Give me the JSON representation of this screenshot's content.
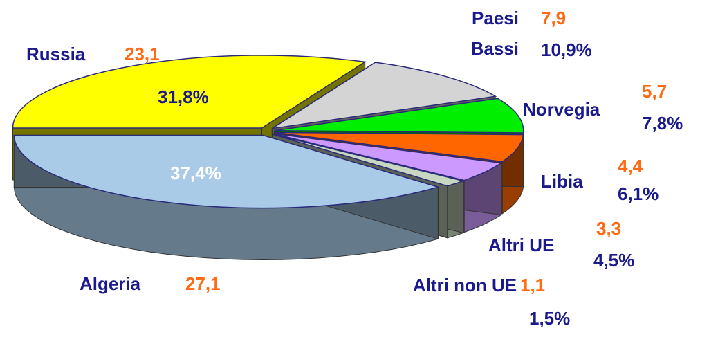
{
  "chart_data": {
    "type": "pie",
    "categories": [
      "Russia",
      "Paesi Bassi",
      "Norvegia",
      "Libia",
      "Altri UE",
      "Altri non UE",
      "Algeria"
    ],
    "values": [
      31.8,
      10.9,
      7.8,
      6.1,
      4.5,
      1.5,
      37.4
    ],
    "value_labels": [
      "31,8%",
      "10,9%",
      "7,8%",
      "6,1%",
      "4,5%",
      "1,5%",
      "37,4%"
    ],
    "amounts": [
      23.1,
      7.9,
      5.7,
      4.4,
      3.3,
      1.1,
      27.1
    ],
    "amount_labels": [
      "23,1",
      "7,9",
      "5,7",
      "4,4",
      "3,3",
      "1,1",
      "27,1"
    ],
    "colors": [
      "#ffff00",
      "#d4d4d4",
      "#00ee00",
      "#ff6600",
      "#cc99ff",
      "#c8d8c0",
      "#a9cbe8"
    ]
  }
}
